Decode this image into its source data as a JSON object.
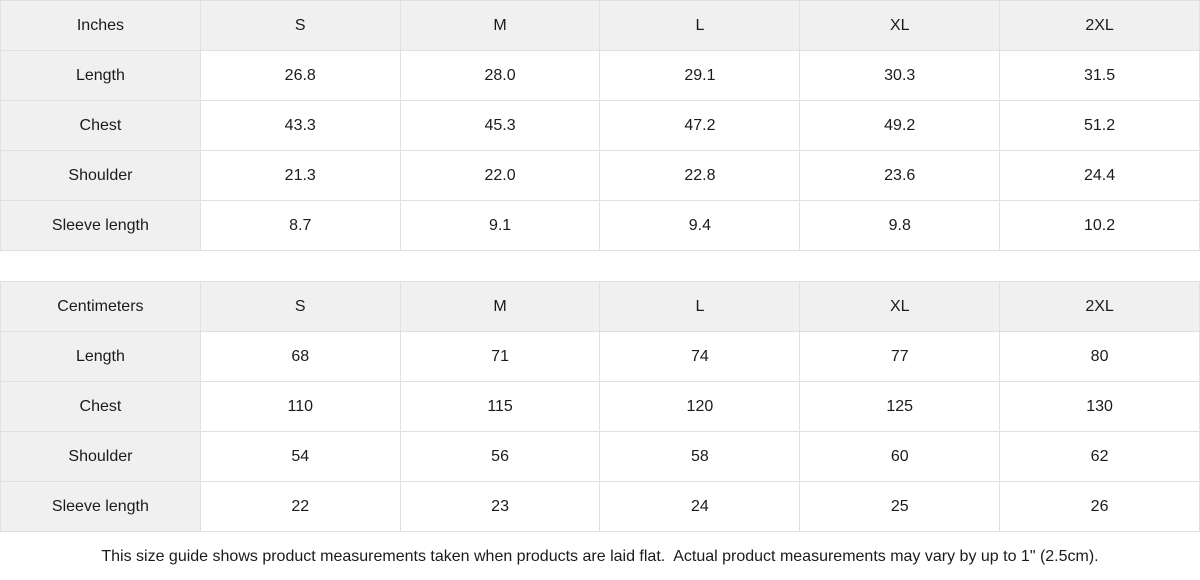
{
  "chart_data": [
    {
      "type": "table",
      "unit": "Inches",
      "columns": [
        "S",
        "M",
        "L",
        "XL",
        "2XL"
      ],
      "rows": [
        {
          "label": "Length",
          "values": [
            "26.8",
            "28.0",
            "29.1",
            "30.3",
            "31.5"
          ]
        },
        {
          "label": "Chest",
          "values": [
            "43.3",
            "45.3",
            "47.2",
            "49.2",
            "51.2"
          ]
        },
        {
          "label": "Shoulder",
          "values": [
            "21.3",
            "22.0",
            "22.8",
            "23.6",
            "24.4"
          ]
        },
        {
          "label": "Sleeve length",
          "values": [
            "8.7",
            "9.1",
            "9.4",
            "9.8",
            "10.2"
          ]
        }
      ]
    },
    {
      "type": "table",
      "unit": "Centimeters",
      "columns": [
        "S",
        "M",
        "L",
        "XL",
        "2XL"
      ],
      "rows": [
        {
          "label": "Length",
          "values": [
            "68",
            "71",
            "74",
            "77",
            "80"
          ]
        },
        {
          "label": "Chest",
          "values": [
            "110",
            "115",
            "120",
            "125",
            "130"
          ]
        },
        {
          "label": "Shoulder",
          "values": [
            "54",
            "56",
            "58",
            "60",
            "62"
          ]
        },
        {
          "label": "Sleeve length",
          "values": [
            "22",
            "23",
            "24",
            "25",
            "26"
          ]
        }
      ]
    }
  ],
  "footer_note": "This size guide shows product measurements taken when products are laid flat.  Actual product measurements may vary by up to 1\" (2.5cm).",
  "colors": {
    "header_bg": "#f0f0f1",
    "border": "#e0e0e0",
    "text": "#1b1b1b",
    "background": "#ffffff"
  }
}
